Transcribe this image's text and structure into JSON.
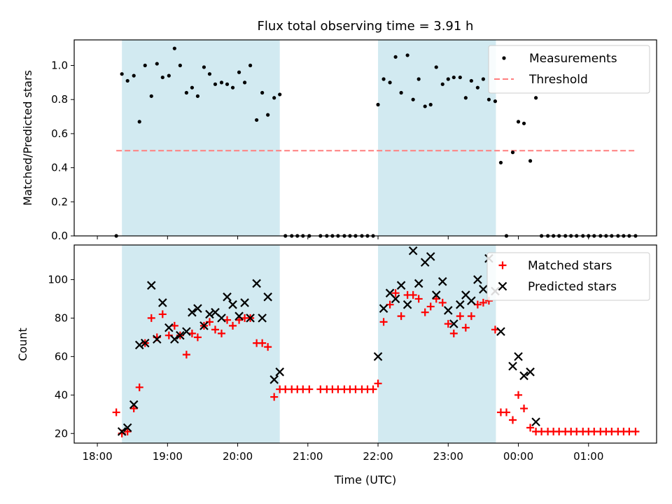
{
  "title": "Flux total observing time = 3.91 h",
  "colors": {
    "shade": "#add8e6",
    "measurement": "#000000",
    "threshold": "#ff7f7f",
    "matched": "#ff0000",
    "predicted": "#000000"
  },
  "x_axis": {
    "label": "Time (UTC)",
    "ticks": [
      {
        "t": 0.0,
        "label": "18:00"
      },
      {
        "t": 1.0,
        "label": "19:00"
      },
      {
        "t": 2.0,
        "label": "20:00"
      },
      {
        "t": 3.0,
        "label": "21:00"
      },
      {
        "t": 4.0,
        "label": "22:00"
      },
      {
        "t": 5.0,
        "label": "23:00"
      },
      {
        "t": 6.0,
        "label": "00:00"
      },
      {
        "t": 7.0,
        "label": "01:00"
      }
    ]
  },
  "chart_data": [
    {
      "type": "scatter",
      "title": "Flux total observing time = 3.91 h",
      "xlabel": "Time (UTC)",
      "ylabel": "Matched/Predicted stars",
      "xlim": [
        -0.33,
        7.97
      ],
      "ylim": [
        0,
        1.15
      ],
      "yticks": [
        {
          "v": 0.0,
          "label": "0.0"
        },
        {
          "v": 0.2,
          "label": "0.2"
        },
        {
          "v": 0.4,
          "label": "0.4"
        },
        {
          "v": 0.6,
          "label": "0.6"
        },
        {
          "v": 0.8,
          "label": "0.8"
        },
        {
          "v": 1.0,
          "label": "1.0"
        }
      ],
      "legend_position": "top-right",
      "legend": [
        {
          "label": "Measurements",
          "marker": "dot"
        },
        {
          "label": "Threshold",
          "marker": "dash"
        }
      ],
      "shaded_intervals": [
        [
          0.35,
          2.6
        ],
        [
          4.0,
          5.68
        ]
      ],
      "threshold": {
        "value": 0.5,
        "x_range": [
          0.27,
          7.67
        ]
      },
      "series": [
        {
          "name": "Measurements",
          "points": [
            [
              0.27,
              0.0
            ],
            [
              0.35,
              0.95
            ],
            [
              0.43,
              0.91
            ],
            [
              0.52,
              0.94
            ],
            [
              0.6,
              0.67
            ],
            [
              0.68,
              1.0
            ],
            [
              0.77,
              0.82
            ],
            [
              0.85,
              1.01
            ],
            [
              0.93,
              0.93
            ],
            [
              1.02,
              0.94
            ],
            [
              1.1,
              1.1
            ],
            [
              1.18,
              1.0
            ],
            [
              1.27,
              0.84
            ],
            [
              1.35,
              0.87
            ],
            [
              1.43,
              0.82
            ],
            [
              1.52,
              0.99
            ],
            [
              1.6,
              0.95
            ],
            [
              1.68,
              0.89
            ],
            [
              1.77,
              0.9
            ],
            [
              1.85,
              0.89
            ],
            [
              1.93,
              0.87
            ],
            [
              2.02,
              0.96
            ],
            [
              2.1,
              0.9
            ],
            [
              2.18,
              1.0
            ],
            [
              2.27,
              0.68
            ],
            [
              2.35,
              0.84
            ],
            [
              2.43,
              0.71
            ],
            [
              2.52,
              0.81
            ],
            [
              2.6,
              0.83
            ],
            [
              2.68,
              0.0
            ],
            [
              2.77,
              0.0
            ],
            [
              2.85,
              0.0
            ],
            [
              2.93,
              0.0
            ],
            [
              3.02,
              0.0
            ],
            [
              3.18,
              0.0
            ],
            [
              3.27,
              0.0
            ],
            [
              3.35,
              0.0
            ],
            [
              3.43,
              0.0
            ],
            [
              3.52,
              0.0
            ],
            [
              3.6,
              0.0
            ],
            [
              3.68,
              0.0
            ],
            [
              3.77,
              0.0
            ],
            [
              3.85,
              0.0
            ],
            [
              3.93,
              0.0
            ],
            [
              4.0,
              0.77
            ],
            [
              4.08,
              0.92
            ],
            [
              4.17,
              0.9
            ],
            [
              4.25,
              1.05
            ],
            [
              4.33,
              0.84
            ],
            [
              4.42,
              1.06
            ],
            [
              4.5,
              0.8
            ],
            [
              4.58,
              0.92
            ],
            [
              4.67,
              0.76
            ],
            [
              4.75,
              0.77
            ],
            [
              4.83,
              0.99
            ],
            [
              4.92,
              0.89
            ],
            [
              5.0,
              0.92
            ],
            [
              5.08,
              0.93
            ],
            [
              5.17,
              0.93
            ],
            [
              5.25,
              0.81
            ],
            [
              5.33,
              0.91
            ],
            [
              5.42,
              0.87
            ],
            [
              5.5,
              0.92
            ],
            [
              5.58,
              0.8
            ],
            [
              5.67,
              0.79
            ],
            [
              5.75,
              0.43
            ],
            [
              5.83,
              0.0
            ],
            [
              5.92,
              0.49
            ],
            [
              6.0,
              0.67
            ],
            [
              6.08,
              0.66
            ],
            [
              6.17,
              0.44
            ],
            [
              6.25,
              0.81
            ],
            [
              6.33,
              0.0
            ],
            [
              6.42,
              0.0
            ],
            [
              6.5,
              0.0
            ],
            [
              6.58,
              0.0
            ],
            [
              6.67,
              0.0
            ],
            [
              6.75,
              0.0
            ],
            [
              6.83,
              0.0
            ],
            [
              6.92,
              0.0
            ],
            [
              7.0,
              0.0
            ],
            [
              7.08,
              0.0
            ],
            [
              7.17,
              0.0
            ],
            [
              7.25,
              0.0
            ],
            [
              7.33,
              0.0
            ],
            [
              7.42,
              0.0
            ],
            [
              7.5,
              0.0
            ],
            [
              7.58,
              0.0
            ],
            [
              7.67,
              0.0
            ]
          ]
        }
      ]
    },
    {
      "type": "scatter",
      "xlabel": "Time (UTC)",
      "ylabel": "Count",
      "xlim": [
        -0.33,
        7.97
      ],
      "ylim": [
        15,
        118
      ],
      "yticks": [
        {
          "v": 20,
          "label": "20"
        },
        {
          "v": 40,
          "label": "40"
        },
        {
          "v": 60,
          "label": "60"
        },
        {
          "v": 80,
          "label": "80"
        },
        {
          "v": 100,
          "label": "100"
        }
      ],
      "legend_position": "top-right",
      "legend": [
        {
          "label": "Matched stars",
          "marker": "plus"
        },
        {
          "label": "Predicted stars",
          "marker": "x"
        }
      ],
      "shaded_intervals": [
        [
          0.35,
          2.6
        ],
        [
          4.0,
          5.68
        ]
      ],
      "series": [
        {
          "name": "Matched stars",
          "marker": "plus",
          "points": [
            [
              0.27,
              31
            ],
            [
              0.35,
              20
            ],
            [
              0.43,
              21
            ],
            [
              0.52,
              33
            ],
            [
              0.6,
              44
            ],
            [
              0.68,
              67
            ],
            [
              0.77,
              80
            ],
            [
              0.85,
              70
            ],
            [
              0.93,
              82
            ],
            [
              1.02,
              71
            ],
            [
              1.1,
              76
            ],
            [
              1.18,
              71
            ],
            [
              1.27,
              61
            ],
            [
              1.35,
              72
            ],
            [
              1.43,
              70
            ],
            [
              1.52,
              76
            ],
            [
              1.6,
              78
            ],
            [
              1.68,
              74
            ],
            [
              1.77,
              72
            ],
            [
              1.85,
              79
            ],
            [
              1.93,
              76
            ],
            [
              2.02,
              79
            ],
            [
              2.1,
              80
            ],
            [
              2.18,
              80
            ],
            [
              2.27,
              67
            ],
            [
              2.35,
              67
            ],
            [
              2.43,
              65
            ],
            [
              2.52,
              39
            ],
            [
              2.6,
              43
            ],
            [
              2.68,
              43
            ],
            [
              2.77,
              43
            ],
            [
              2.85,
              43
            ],
            [
              2.93,
              43
            ],
            [
              3.02,
              43
            ],
            [
              3.18,
              43
            ],
            [
              3.27,
              43
            ],
            [
              3.35,
              43
            ],
            [
              3.43,
              43
            ],
            [
              3.52,
              43
            ],
            [
              3.6,
              43
            ],
            [
              3.68,
              43
            ],
            [
              3.77,
              43
            ],
            [
              3.85,
              43
            ],
            [
              3.93,
              43
            ],
            [
              4.0,
              46
            ],
            [
              4.08,
              78
            ],
            [
              4.17,
              87
            ],
            [
              4.25,
              93
            ],
            [
              4.33,
              81
            ],
            [
              4.42,
              92
            ],
            [
              4.5,
              92
            ],
            [
              4.58,
              90
            ],
            [
              4.67,
              83
            ],
            [
              4.75,
              86
            ],
            [
              4.83,
              90
            ],
            [
              4.92,
              88
            ],
            [
              5.0,
              77
            ],
            [
              5.08,
              72
            ],
            [
              5.17,
              81
            ],
            [
              5.25,
              75
            ],
            [
              5.33,
              81
            ],
            [
              5.42,
              87
            ],
            [
              5.5,
              88
            ],
            [
              5.58,
              89
            ],
            [
              5.67,
              74
            ],
            [
              5.75,
              31
            ],
            [
              5.83,
              31
            ],
            [
              5.92,
              27
            ],
            [
              6.0,
              40
            ],
            [
              6.08,
              33
            ],
            [
              6.17,
              23
            ],
            [
              6.25,
              21
            ],
            [
              6.33,
              21
            ],
            [
              6.42,
              21
            ],
            [
              6.5,
              21
            ],
            [
              6.58,
              21
            ],
            [
              6.67,
              21
            ],
            [
              6.75,
              21
            ],
            [
              6.83,
              21
            ],
            [
              6.92,
              21
            ],
            [
              7.0,
              21
            ],
            [
              7.08,
              21
            ],
            [
              7.17,
              21
            ],
            [
              7.25,
              21
            ],
            [
              7.33,
              21
            ],
            [
              7.42,
              21
            ],
            [
              7.5,
              21
            ],
            [
              7.58,
              21
            ],
            [
              7.67,
              21
            ]
          ]
        },
        {
          "name": "Predicted stars",
          "marker": "x",
          "points": [
            [
              0.35,
              21
            ],
            [
              0.43,
              23
            ],
            [
              0.52,
              35
            ],
            [
              0.6,
              66
            ],
            [
              0.68,
              67
            ],
            [
              0.77,
              97
            ],
            [
              0.85,
              69
            ],
            [
              0.93,
              88
            ],
            [
              1.02,
              75
            ],
            [
              1.1,
              69
            ],
            [
              1.18,
              71
            ],
            [
              1.27,
              73
            ],
            [
              1.35,
              83
            ],
            [
              1.43,
              85
            ],
            [
              1.52,
              76
            ],
            [
              1.6,
              82
            ],
            [
              1.68,
              83
            ],
            [
              1.77,
              80
            ],
            [
              1.85,
              91
            ],
            [
              1.93,
              87
            ],
            [
              2.02,
              81
            ],
            [
              2.1,
              88
            ],
            [
              2.18,
              80
            ],
            [
              2.27,
              98
            ],
            [
              2.35,
              80
            ],
            [
              2.43,
              91
            ],
            [
              2.52,
              48
            ],
            [
              2.6,
              52
            ],
            [
              4.0,
              60
            ],
            [
              4.08,
              85
            ],
            [
              4.17,
              93
            ],
            [
              4.25,
              90
            ],
            [
              4.33,
              97
            ],
            [
              4.42,
              87
            ],
            [
              4.5,
              115
            ],
            [
              4.58,
              98
            ],
            [
              4.67,
              109
            ],
            [
              4.75,
              112
            ],
            [
              4.83,
              92
            ],
            [
              4.92,
              99
            ],
            [
              5.0,
              84
            ],
            [
              5.08,
              77
            ],
            [
              5.17,
              87
            ],
            [
              5.25,
              92
            ],
            [
              5.33,
              89
            ],
            [
              5.42,
              100
            ],
            [
              5.5,
              95
            ],
            [
              5.58,
              111
            ],
            [
              5.67,
              94
            ],
            [
              5.75,
              73
            ],
            [
              5.92,
              55
            ],
            [
              6.0,
              60
            ],
            [
              6.08,
              50
            ],
            [
              6.17,
              52
            ],
            [
              6.25,
              26
            ]
          ]
        }
      ]
    }
  ]
}
